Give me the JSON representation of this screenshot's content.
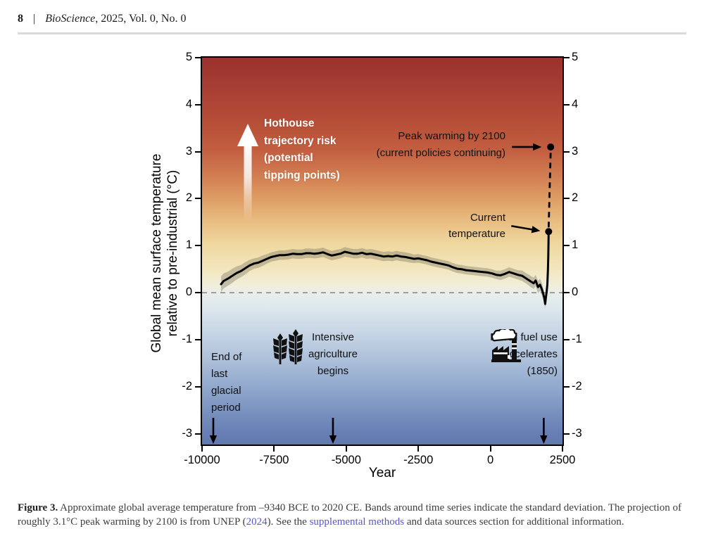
{
  "header": {
    "page_number": "8",
    "separator": "|",
    "journal_italic": "BioScience",
    "journal_rest": ", 2025, Vol. 0, No. 0"
  },
  "chart_data": {
    "type": "line",
    "xlabel": "Year",
    "ylabel_line1": "Global mean surface temperature",
    "ylabel_line2": "relative to pre-industrial (°C)",
    "xlim": [
      -10000,
      2500
    ],
    "ylim": [
      -3.23,
      5
    ],
    "x_ticks": [
      -10000,
      -7500,
      -5000,
      -2500,
      0,
      2500
    ],
    "y_ticks": [
      5,
      4,
      3,
      2,
      1,
      0,
      -1,
      -2,
      -3
    ],
    "zero_line": 0,
    "grid": false,
    "series": [
      {
        "name": "Global mean temperature anomaly with standard-deviation band",
        "points": [
          [
            -9340,
            0.18,
            0.17
          ],
          [
            -9250,
            0.25,
            0.16
          ],
          [
            -9100,
            0.3,
            0.15
          ],
          [
            -8950,
            0.36,
            0.15
          ],
          [
            -8800,
            0.42,
            0.14
          ],
          [
            -8650,
            0.46,
            0.13
          ],
          [
            -8500,
            0.52,
            0.13
          ],
          [
            -8350,
            0.58,
            0.12
          ],
          [
            -8200,
            0.62,
            0.11
          ],
          [
            -8050,
            0.64,
            0.11
          ],
          [
            -7900,
            0.68,
            0.11
          ],
          [
            -7750,
            0.72,
            0.1
          ],
          [
            -7600,
            0.76,
            0.1
          ],
          [
            -7450,
            0.78,
            0.1
          ],
          [
            -7300,
            0.8,
            0.1
          ],
          [
            -7150,
            0.8,
            0.1
          ],
          [
            -7000,
            0.81,
            0.1
          ],
          [
            -6850,
            0.83,
            0.1
          ],
          [
            -6700,
            0.82,
            0.1
          ],
          [
            -6550,
            0.82,
            0.1
          ],
          [
            -6400,
            0.84,
            0.1
          ],
          [
            -6250,
            0.84,
            0.1
          ],
          [
            -6100,
            0.83,
            0.1
          ],
          [
            -5950,
            0.84,
            0.1
          ],
          [
            -5800,
            0.86,
            0.1
          ],
          [
            -5650,
            0.82,
            0.1
          ],
          [
            -5500,
            0.79,
            0.1
          ],
          [
            -5350,
            0.81,
            0.1
          ],
          [
            -5200,
            0.83,
            0.1
          ],
          [
            -5050,
            0.87,
            0.1
          ],
          [
            -4900,
            0.85,
            0.1
          ],
          [
            -4750,
            0.83,
            0.1
          ],
          [
            -4600,
            0.83,
            0.1
          ],
          [
            -4450,
            0.85,
            0.1
          ],
          [
            -4300,
            0.82,
            0.1
          ],
          [
            -4150,
            0.83,
            0.1
          ],
          [
            -4000,
            0.81,
            0.1
          ],
          [
            -3850,
            0.79,
            0.1
          ],
          [
            -3700,
            0.77,
            0.1
          ],
          [
            -3550,
            0.78,
            0.1
          ],
          [
            -3400,
            0.77,
            0.1
          ],
          [
            -3250,
            0.79,
            0.1
          ],
          [
            -3100,
            0.77,
            0.1
          ],
          [
            -2950,
            0.76,
            0.1
          ],
          [
            -2800,
            0.74,
            0.1
          ],
          [
            -2650,
            0.72,
            0.09
          ],
          [
            -2500,
            0.73,
            0.09
          ],
          [
            -2350,
            0.71,
            0.09
          ],
          [
            -2200,
            0.69,
            0.09
          ],
          [
            -2050,
            0.66,
            0.09
          ],
          [
            -1900,
            0.64,
            0.09
          ],
          [
            -1750,
            0.62,
            0.09
          ],
          [
            -1600,
            0.6,
            0.09
          ],
          [
            -1450,
            0.58,
            0.09
          ],
          [
            -1300,
            0.54,
            0.09
          ],
          [
            -1150,
            0.51,
            0.09
          ],
          [
            -1000,
            0.5,
            0.09
          ],
          [
            -850,
            0.48,
            0.09
          ],
          [
            -700,
            0.47,
            0.09
          ],
          [
            -550,
            0.46,
            0.09
          ],
          [
            -400,
            0.45,
            0.09
          ],
          [
            -250,
            0.44,
            0.09
          ],
          [
            -100,
            0.43,
            0.09
          ],
          [
            50,
            0.41,
            0.09
          ],
          [
            200,
            0.38,
            0.09
          ],
          [
            350,
            0.37,
            0.1
          ],
          [
            500,
            0.4,
            0.1
          ],
          [
            650,
            0.44,
            0.1
          ],
          [
            800,
            0.41,
            0.1
          ],
          [
            950,
            0.38,
            0.1
          ],
          [
            1100,
            0.36,
            0.11
          ],
          [
            1250,
            0.3,
            0.11
          ],
          [
            1400,
            0.24,
            0.12
          ],
          [
            1500,
            0.2,
            0.12
          ],
          [
            1570,
            0.26,
            0.12
          ],
          [
            1650,
            0.12,
            0.13
          ],
          [
            1720,
            0.17,
            0.13
          ],
          [
            1780,
            0.08,
            0.13
          ],
          [
            1830,
            -0.02,
            0.12
          ],
          [
            1870,
            -0.12,
            0.11
          ],
          [
            1900,
            -0.24,
            0.1
          ],
          [
            1925,
            -0.1,
            0.08
          ],
          [
            1950,
            0.02,
            0.06
          ],
          [
            1975,
            0.18,
            0.05
          ],
          [
            1995,
            0.48,
            0.04
          ],
          [
            2008,
            0.78,
            0.03
          ],
          [
            2015,
            1.05,
            0.02
          ],
          [
            2020,
            1.3,
            0.02
          ]
        ]
      }
    ],
    "projection": {
      "current": {
        "year": 2020,
        "value": 1.3
      },
      "peak": {
        "year": 2090,
        "value": 3.1
      }
    }
  },
  "annotations": {
    "hothouse": {
      "lines": [
        "Hothouse",
        "trajectory risk",
        "(potential",
        "tipping points)"
      ]
    },
    "peak": {
      "lines": [
        "Peak warming by 2100",
        "(current policies continuing)"
      ]
    },
    "current": {
      "lines": [
        "Current",
        "temperature"
      ]
    },
    "glacial": {
      "year": -9610,
      "lines": [
        "End of",
        "last",
        "glacial",
        "period"
      ]
    },
    "agriculture": {
      "year": -5460,
      "lines": [
        "Intensive",
        "agriculture",
        "begins"
      ]
    },
    "fossil": {
      "year": 1850,
      "lines": [
        "Fossil fuel use",
        "accelerates",
        "(1850)"
      ]
    }
  },
  "caption": {
    "label": "Figure 3.",
    "part1": " Approximate global average temperature from –9340 BCE to 2020 CE. Bands around time series indicate the standard deviation. The projection of roughly 3.1°C peak warming by 2100 is from UNEP (",
    "link1": "2024",
    "part2": "). See the ",
    "link2": "supplemental methods",
    "part3": " and data sources section for additional information."
  },
  "colors": {
    "line": "#000000",
    "band": "rgba(125,118,95,0.40)",
    "zero_line": "#8c8c8c",
    "link": "#5955cc",
    "gradient_top": "#9a322d",
    "gradient_mid_warm": "#efd79e",
    "gradient_bottom": "#617aae",
    "annotation_text": "#111111",
    "hothouse_text": "#ffffff"
  }
}
